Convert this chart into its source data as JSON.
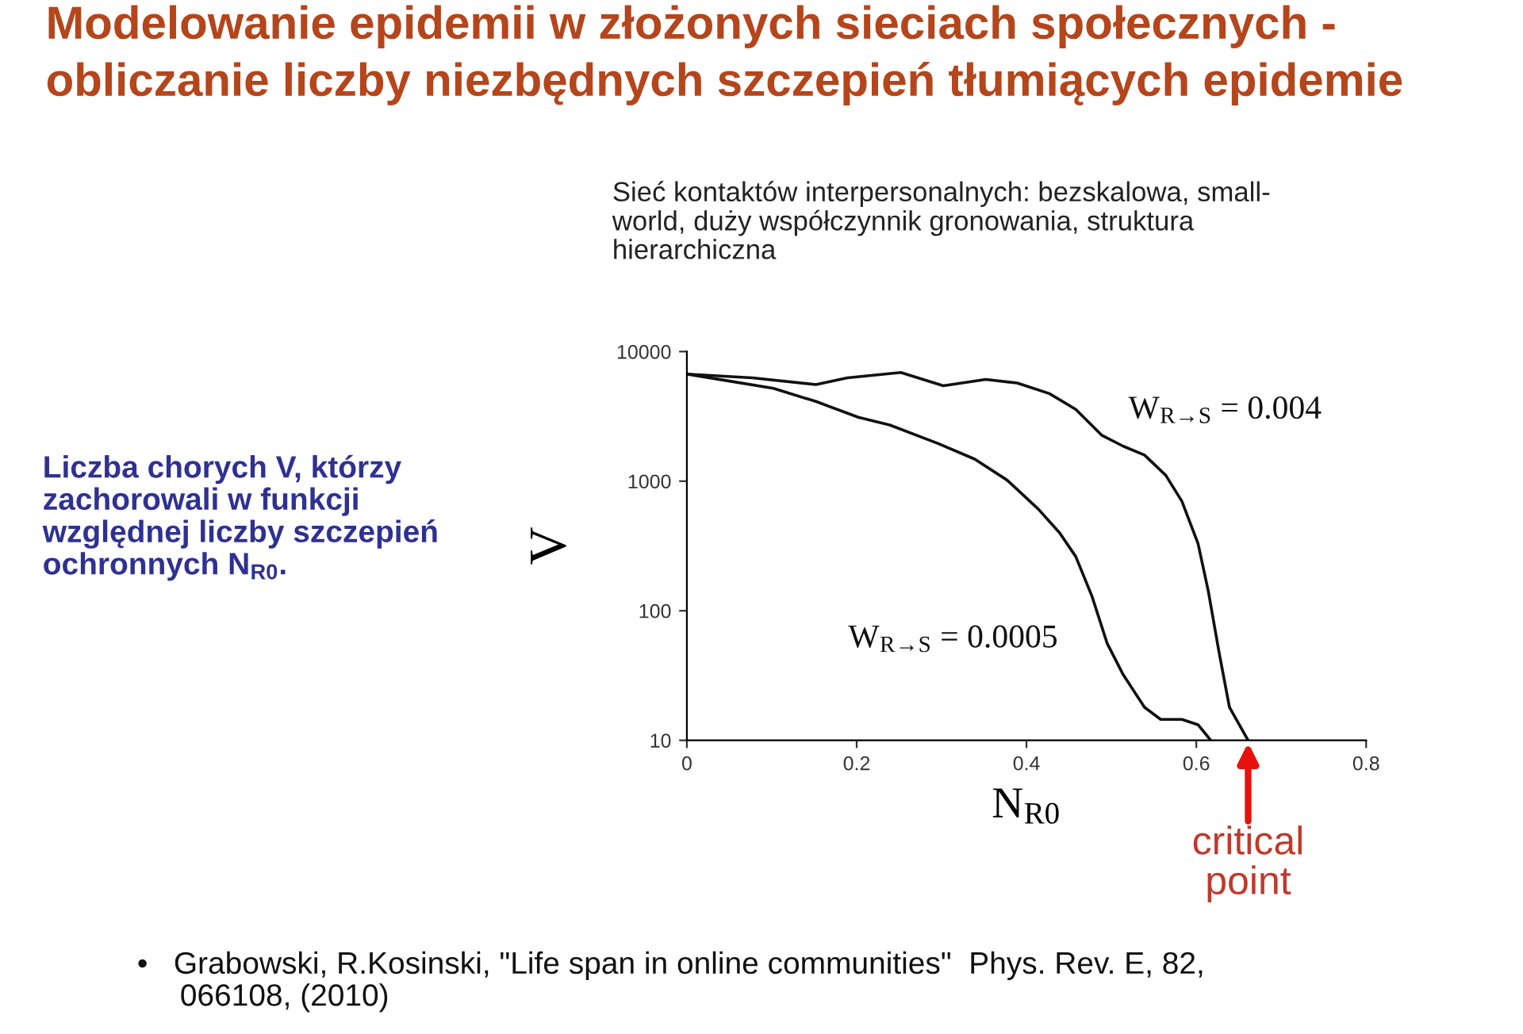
{
  "chart_data": {
    "type": "line",
    "title": "Modelowanie epidemii w złożonych sieciach społecznych -\nobliczanie liczby niezbędnych szczepień tłumiących epidemie",
    "xlabel": "N$_{R0}$",
    "ylabel": "V",
    "log": "y",
    "xlim": [
      0,
      0.8
    ],
    "xticks": [
      0,
      0.2,
      0.4,
      0.6,
      0.8
    ],
    "ylim": [
      10,
      10000
    ],
    "yticks": [
      10,
      100,
      1000,
      10000
    ],
    "grid": false,
    "legend": false,
    "marker": "none",
    "line_style": "solid",
    "series": [
      {
        "name": "W$_{R→S}$ = 0.004",
        "color": "#111111",
        "x": [
          0,
          0.077,
          0.152,
          0.189,
          0.252,
          0.302,
          0.352,
          0.389,
          0.427,
          0.458,
          0.489,
          0.514,
          0.539,
          0.564,
          0.583,
          0.602,
          0.614,
          0.627,
          0.639,
          0.661
        ],
        "values": [
          6700,
          6270,
          5560,
          6270,
          6890,
          5450,
          6100,
          5720,
          4740,
          3580,
          2250,
          1860,
          1590,
          1110,
          700,
          331,
          143,
          47,
          18,
          10
        ]
      },
      {
        "name": "W$_{R→S}$ = 0.0005",
        "color": "#111111",
        "x": [
          0,
          0.046,
          0.102,
          0.152,
          0.202,
          0.239,
          0.296,
          0.339,
          0.377,
          0.414,
          0.439,
          0.458,
          0.477,
          0.495,
          0.514,
          0.539,
          0.558,
          0.583,
          0.602,
          0.617
        ],
        "values": [
          6700,
          5980,
          5200,
          4120,
          3110,
          2710,
          1950,
          1480,
          1020,
          608,
          399,
          262,
          130,
          56,
          32,
          18,
          14.5,
          14.5,
          13.2,
          10
        ]
      }
    ],
    "annotations": [
      "Sieć kontaktów interpersonalnych: bezskalowa, small-\nworld, duży współczynnik gronowania, struktura\nhierarchiczna",
      "Liczba chorych V, którzy\nzachorowali w funkcji\nwzględnej liczby szczepień\nochronnych N$_{R0}$.",
      "•   Grabowski, R.Kosinski, \"Life span in online communities\"  Phys. Rev. E, 82,\n     066108, (2010)",
      {
        "text": "critical\npoint",
        "x": 0.661,
        "y": 10
      }
    ]
  }
}
